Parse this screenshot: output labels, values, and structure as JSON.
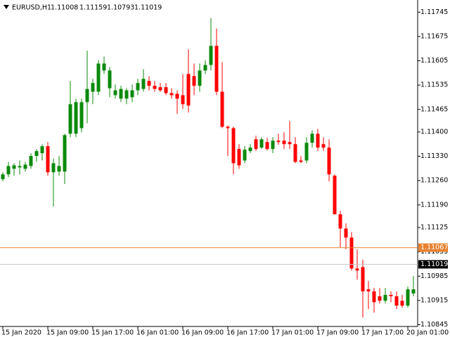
{
  "chart_data": {
    "type": "candlestick",
    "symbol": "EURUSD,H1",
    "header_ohlc": [
      1.11008,
      1.11159,
      1.10793,
      1.11019
    ],
    "up_color": "#0b8a0b",
    "down_color": "#ff0000",
    "categories": [
      "15 Jan 2020",
      null,
      null,
      null,
      null,
      null,
      null,
      null,
      "15 Jan 09:00",
      null,
      null,
      null,
      null,
      null,
      null,
      null,
      "15 Jan 17:00",
      null,
      null,
      null,
      null,
      null,
      null,
      null,
      "16 Jan 01:00",
      null,
      null,
      null,
      null,
      null,
      null,
      null,
      "16 Jan 09:00",
      null,
      null,
      null,
      null,
      null,
      null,
      null,
      "16 Jan 17:00",
      null,
      null,
      null,
      null,
      null,
      null,
      null,
      "17 Jan 01:00",
      null,
      null,
      null,
      null,
      null,
      null,
      null,
      "17 Jan 09:00",
      null,
      null,
      null,
      null,
      null,
      null,
      null,
      "17 Jan 17:00",
      null,
      null,
      null,
      null,
      null,
      null,
      null,
      "20 Jan 01:00",
      null
    ],
    "open": [
      1.11264,
      1.11278,
      1.11294,
      1.11298,
      1.11294,
      1.11302,
      1.11331,
      1.11339,
      1.11359,
      1.11284,
      1.11286,
      1.11286,
      1.11395,
      1.11395,
      1.11411,
      1.11486,
      1.11516,
      1.11516,
      1.11577,
      1.11526,
      1.11506,
      1.11496,
      1.11496,
      1.115,
      1.1152,
      1.11524,
      1.11547,
      1.11533,
      1.11529,
      1.11529,
      1.11512,
      1.1151,
      1.11506,
      1.11567,
      1.11561,
      1.11533,
      1.11577,
      1.11593,
      1.11648,
      1.11516,
      1.11415,
      1.11411,
      1.11351,
      1.11318,
      1.11345,
      1.11379,
      1.11355,
      1.11371,
      1.11351,
      1.11375,
      1.11375,
      1.11371,
      1.11365,
      1.11318,
      1.11318,
      1.11369,
      1.11395,
      1.11365,
      1.11355,
      1.11274,
      1.11163,
      1.11122,
      1.11096,
      1.11007,
      1.11011,
      1.10947,
      1.10941,
      1.10927,
      1.10914,
      1.10931,
      1.10927,
      1.10914,
      1.109,
      1.10935
    ],
    "high": [
      1.11284,
      1.11314,
      1.1131,
      1.11318,
      1.11314,
      1.11339,
      1.11351,
      1.11365,
      1.11371,
      1.11324,
      1.11331,
      1.11395,
      1.11547,
      1.11496,
      1.11496,
      1.11634,
      1.11553,
      1.11607,
      1.11617,
      1.11587,
      1.11537,
      1.11533,
      1.11526,
      1.11537,
      1.11553,
      1.11581,
      1.11561,
      1.11547,
      1.11541,
      1.11541,
      1.11526,
      1.1152,
      1.11567,
      1.11638,
      1.11597,
      1.11597,
      1.11607,
      1.11728,
      1.11698,
      1.11601,
      1.11419,
      1.11415,
      1.11365,
      1.11359,
      1.11365,
      1.11389,
      1.11385,
      1.11383,
      1.11385,
      1.11395,
      1.11399,
      1.11432,
      1.11385,
      1.11331,
      1.11385,
      1.11405,
      1.11409,
      1.11385,
      1.11379,
      1.11278,
      1.11173,
      1.11137,
      1.11112,
      1.11062,
      1.11032,
      1.10971,
      1.10951,
      1.10951,
      1.10951,
      1.10941,
      1.10941,
      1.10931,
      1.10955,
      1.10985
    ],
    "low": [
      1.11258,
      1.1127,
      1.11274,
      1.11278,
      1.11286,
      1.11294,
      1.11314,
      1.11318,
      1.11274,
      1.11185,
      1.11274,
      1.1125,
      1.11385,
      1.11385,
      1.11399,
      1.11425,
      1.1148,
      1.11506,
      1.11567,
      1.115,
      1.11496,
      1.11486,
      1.1148,
      1.11486,
      1.11506,
      1.11516,
      1.1152,
      1.11516,
      1.11516,
      1.11506,
      1.11496,
      1.11452,
      1.11466,
      1.11456,
      1.11506,
      1.11516,
      1.11567,
      1.11577,
      1.11506,
      1.11411,
      1.11331,
      1.11278,
      1.11294,
      1.1131,
      1.11339,
      1.11345,
      1.11351,
      1.11347,
      1.11339,
      1.11363,
      1.11351,
      1.11351,
      1.1131,
      1.1131,
      1.1131,
      1.11355,
      1.11345,
      1.11345,
      1.11258,
      1.11163,
      1.11068,
      1.11062,
      1.11001,
      1.10975,
      1.10866,
      1.1089,
      1.1088,
      1.10906,
      1.10906,
      1.1091,
      1.1089,
      1.10894,
      1.10894,
      1.10927
    ],
    "close": [
      1.11278,
      1.11302,
      1.11304,
      1.11302,
      1.11306,
      1.11331,
      1.11345,
      1.11359,
      1.11284,
      1.1131,
      1.11302,
      1.11391,
      1.1148,
      1.11486,
      1.11486,
      1.11524,
      1.11541,
      1.11597,
      1.11597,
      1.11577,
      1.1152,
      1.11524,
      1.1152,
      1.1152,
      1.11541,
      1.11553,
      1.11533,
      1.11524,
      1.1152,
      1.11512,
      1.11506,
      1.11496,
      1.1148,
      1.11476,
      1.11533,
      1.11577,
      1.11593,
      1.11648,
      1.11516,
      1.11415,
      1.11411,
      1.1131,
      1.11304,
      1.11349,
      1.11355,
      1.11351,
      1.11379,
      1.11351,
      1.11375,
      1.11371,
      1.11365,
      1.11365,
      1.11314,
      1.11314,
      1.11369,
      1.11395,
      1.11355,
      1.11355,
      1.11278,
      1.11163,
      1.11122,
      1.11096,
      1.11007,
      1.11001,
      1.10941,
      1.10941,
      1.1091,
      1.10914,
      1.10931,
      1.10927,
      1.109,
      1.109,
      1.10947,
      1.10947
    ],
    "ylim": [
      1.1084,
      1.1178
    ],
    "yticks": [
      1.11745,
      1.11675,
      1.11605,
      1.11535,
      1.11465,
      {
        "value": 1.114,
        "label": "1.11400"
      },
      {
        "value": 1.1133,
        "label": "1.11330"
      },
      {
        "value": 1.1126,
        "label": "1.11260"
      },
      {
        "value": 1.1119,
        "label": "1.11190"
      },
      1.11125,
      1.11055,
      1.10985,
      1.10915,
      1.10845
    ],
    "hlines": [
      {
        "value": 1.11067,
        "color": "#e8812f",
        "label_bg": "#e8812f"
      },
      {
        "value": 1.11019,
        "color": "#c8c8c8",
        "label_bg": "#000000"
      }
    ],
    "grid": false
  }
}
